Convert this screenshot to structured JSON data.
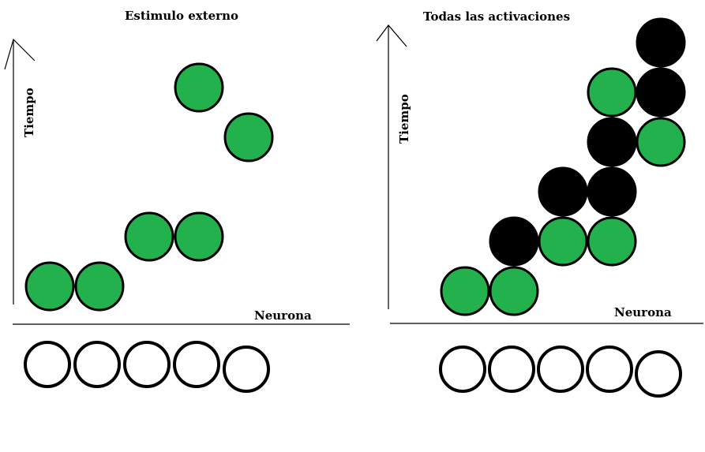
{
  "panels": [
    {
      "title": "Estimulo externo",
      "y_label": "Tiempo",
      "x_label": "Neurona",
      "neurons": 5,
      "activations": [
        {
          "neuron": 1,
          "time": 1,
          "color": "#22b14c"
        },
        {
          "neuron": 2,
          "time": 1,
          "color": "#22b14c"
        },
        {
          "neuron": 3,
          "time": 2,
          "color": "#22b14c"
        },
        {
          "neuron": 4,
          "time": 2,
          "color": "#22b14c"
        },
        {
          "neuron": 5,
          "time": 4,
          "color": "#22b14c"
        },
        {
          "neuron": 4,
          "time": 5,
          "color": "#22b14c"
        }
      ]
    },
    {
      "title": "Todas las activaciones",
      "y_label": "Tiempo",
      "x_label": "Neurona",
      "neurons": 5,
      "activations": [
        {
          "neuron": 1,
          "time": 1,
          "color": "#22b14c"
        },
        {
          "neuron": 2,
          "time": 1,
          "color": "#22b14c"
        },
        {
          "neuron": 2,
          "time": 2,
          "color": "#000000"
        },
        {
          "neuron": 3,
          "time": 2,
          "color": "#22b14c"
        },
        {
          "neuron": 4,
          "time": 2,
          "color": "#22b14c"
        },
        {
          "neuron": 3,
          "time": 3,
          "color": "#000000"
        },
        {
          "neuron": 4,
          "time": 3,
          "color": "#000000"
        },
        {
          "neuron": 4,
          "time": 4,
          "color": "#000000"
        },
        {
          "neuron": 5,
          "time": 4,
          "color": "#22b14c"
        },
        {
          "neuron": 4,
          "time": 5,
          "color": "#22b14c"
        },
        {
          "neuron": 5,
          "time": 5,
          "color": "#000000"
        },
        {
          "neuron": 5,
          "time": 6,
          "color": "#000000"
        }
      ]
    }
  ],
  "colors": {
    "stimulus": "#22b14c",
    "propagated": "#000000",
    "outline": "#000000"
  }
}
